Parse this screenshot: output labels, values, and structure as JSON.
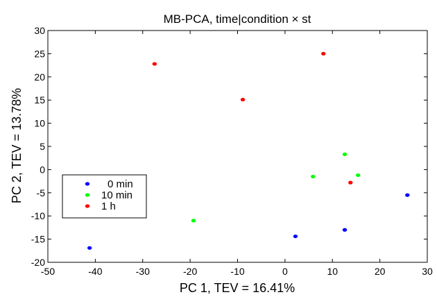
{
  "chart_data": {
    "type": "scatter",
    "title": "MB-PCA, time|condition × st",
    "xlabel": "PC 1, TEV = 16.41%",
    "ylabel": "PC 2, TEV = 13.78%",
    "xlim": [
      -50,
      30
    ],
    "ylim": [
      -20,
      30
    ],
    "xticks": [
      -50,
      -40,
      -30,
      -20,
      -10,
      0,
      10,
      20,
      30
    ],
    "yticks": [
      -20,
      -15,
      -10,
      -5,
      0,
      5,
      10,
      15,
      20,
      25,
      30
    ],
    "grid": false,
    "legend": {
      "placement": "center-left"
    },
    "series": [
      {
        "name": "0 min",
        "color": "#0000ff",
        "points": [
          [
            -41.2,
            -16.9
          ],
          [
            2.2,
            -14.4
          ],
          [
            12.6,
            -13.0
          ],
          [
            25.8,
            -5.5
          ]
        ]
      },
      {
        "name": "10 min",
        "color": "#00ff00",
        "points": [
          [
            -19.3,
            -11.0
          ],
          [
            5.9,
            -1.5
          ],
          [
            12.6,
            3.3
          ],
          [
            15.4,
            -1.2
          ]
        ]
      },
      {
        "name": "1 h",
        "color": "#ff0000",
        "points": [
          [
            -27.5,
            22.8
          ],
          [
            -8.9,
            15.1
          ],
          [
            8.1,
            25.0
          ],
          [
            13.8,
            -2.8
          ]
        ]
      }
    ]
  }
}
